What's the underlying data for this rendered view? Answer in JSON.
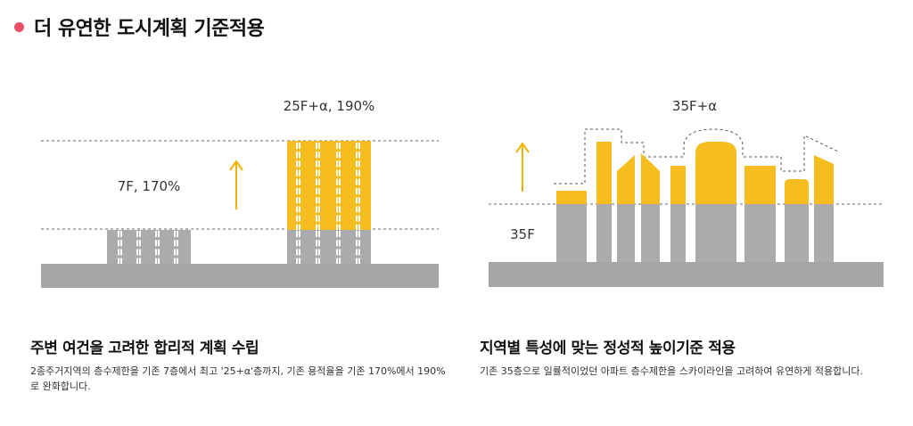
{
  "header": {
    "title": "더 유연한 도시계획 기준적용",
    "bullet_color": "#e8506a"
  },
  "colors": {
    "accent": "#f5bd1f",
    "building": "#ababab",
    "ground": "#a6a6a6",
    "guide": "#666666"
  },
  "left_panel": {
    "label_before": "7F, 170%",
    "label_after": "25F+α, 190%",
    "heading": "주변 여건을 고려한 합리적 계획 수립",
    "description": "2종주거지역의 층수제한을 기존 7층에서 최고 '25+α'층까지, 기존 용적율을 기존 170%에서 190%로 완화합니다."
  },
  "right_panel": {
    "label_after": "35F+α",
    "label_before": "35F",
    "heading": "지역별 특성에 맞는 정성적 높이기준 적용",
    "description": "기존 35층으로 일률적이었던 아파트 층수제한을 스카이라인을 고려하여 유연하게 적용합니다."
  }
}
